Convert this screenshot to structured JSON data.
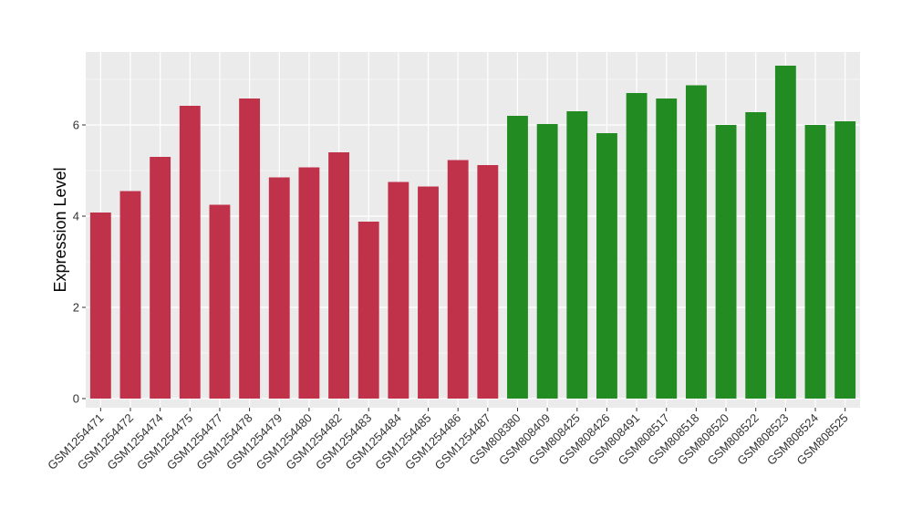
{
  "chart_data": {
    "type": "bar",
    "title": "",
    "xlabel": "",
    "ylabel": "Expression Level",
    "ylim": [
      -0.2,
      7.6
    ],
    "yticks": [
      0,
      2,
      4,
      6
    ],
    "grid": true,
    "legend": "none",
    "panel_background": "#ebebeb",
    "grid_color": "#ffffff",
    "categories": [
      "GSM1254471",
      "GSM1254472",
      "GSM1254474",
      "GSM1254475",
      "GSM1254477",
      "GSM1254478",
      "GSM1254479",
      "GSM1254480",
      "GSM1254482",
      "GSM1254483",
      "GSM1254484",
      "GSM1254485",
      "GSM1254486",
      "GSM1254487",
      "GSM808380",
      "GSM808409",
      "GSM808425",
      "GSM808426",
      "GSM808491",
      "GSM808517",
      "GSM808518",
      "GSM808520",
      "GSM808522",
      "GSM808523",
      "GSM808524",
      "GSM808525"
    ],
    "values": [
      4.08,
      4.55,
      5.3,
      6.42,
      4.25,
      6.58,
      4.85,
      5.07,
      5.4,
      3.88,
      4.75,
      4.65,
      5.23,
      5.12,
      6.2,
      6.02,
      6.3,
      5.82,
      6.7,
      6.58,
      6.87,
      6.0,
      6.28,
      7.3,
      6.0,
      6.08
    ],
    "bar_colors": [
      "#c0314a",
      "#c0314a",
      "#c0314a",
      "#c0314a",
      "#c0314a",
      "#c0314a",
      "#c0314a",
      "#c0314a",
      "#c0314a",
      "#c0314a",
      "#c0314a",
      "#c0314a",
      "#c0314a",
      "#c0314a",
      "#228b22",
      "#228b22",
      "#228b22",
      "#228b22",
      "#228b22",
      "#228b22",
      "#228b22",
      "#228b22",
      "#228b22",
      "#228b22",
      "#228b22",
      "#228b22"
    ]
  }
}
